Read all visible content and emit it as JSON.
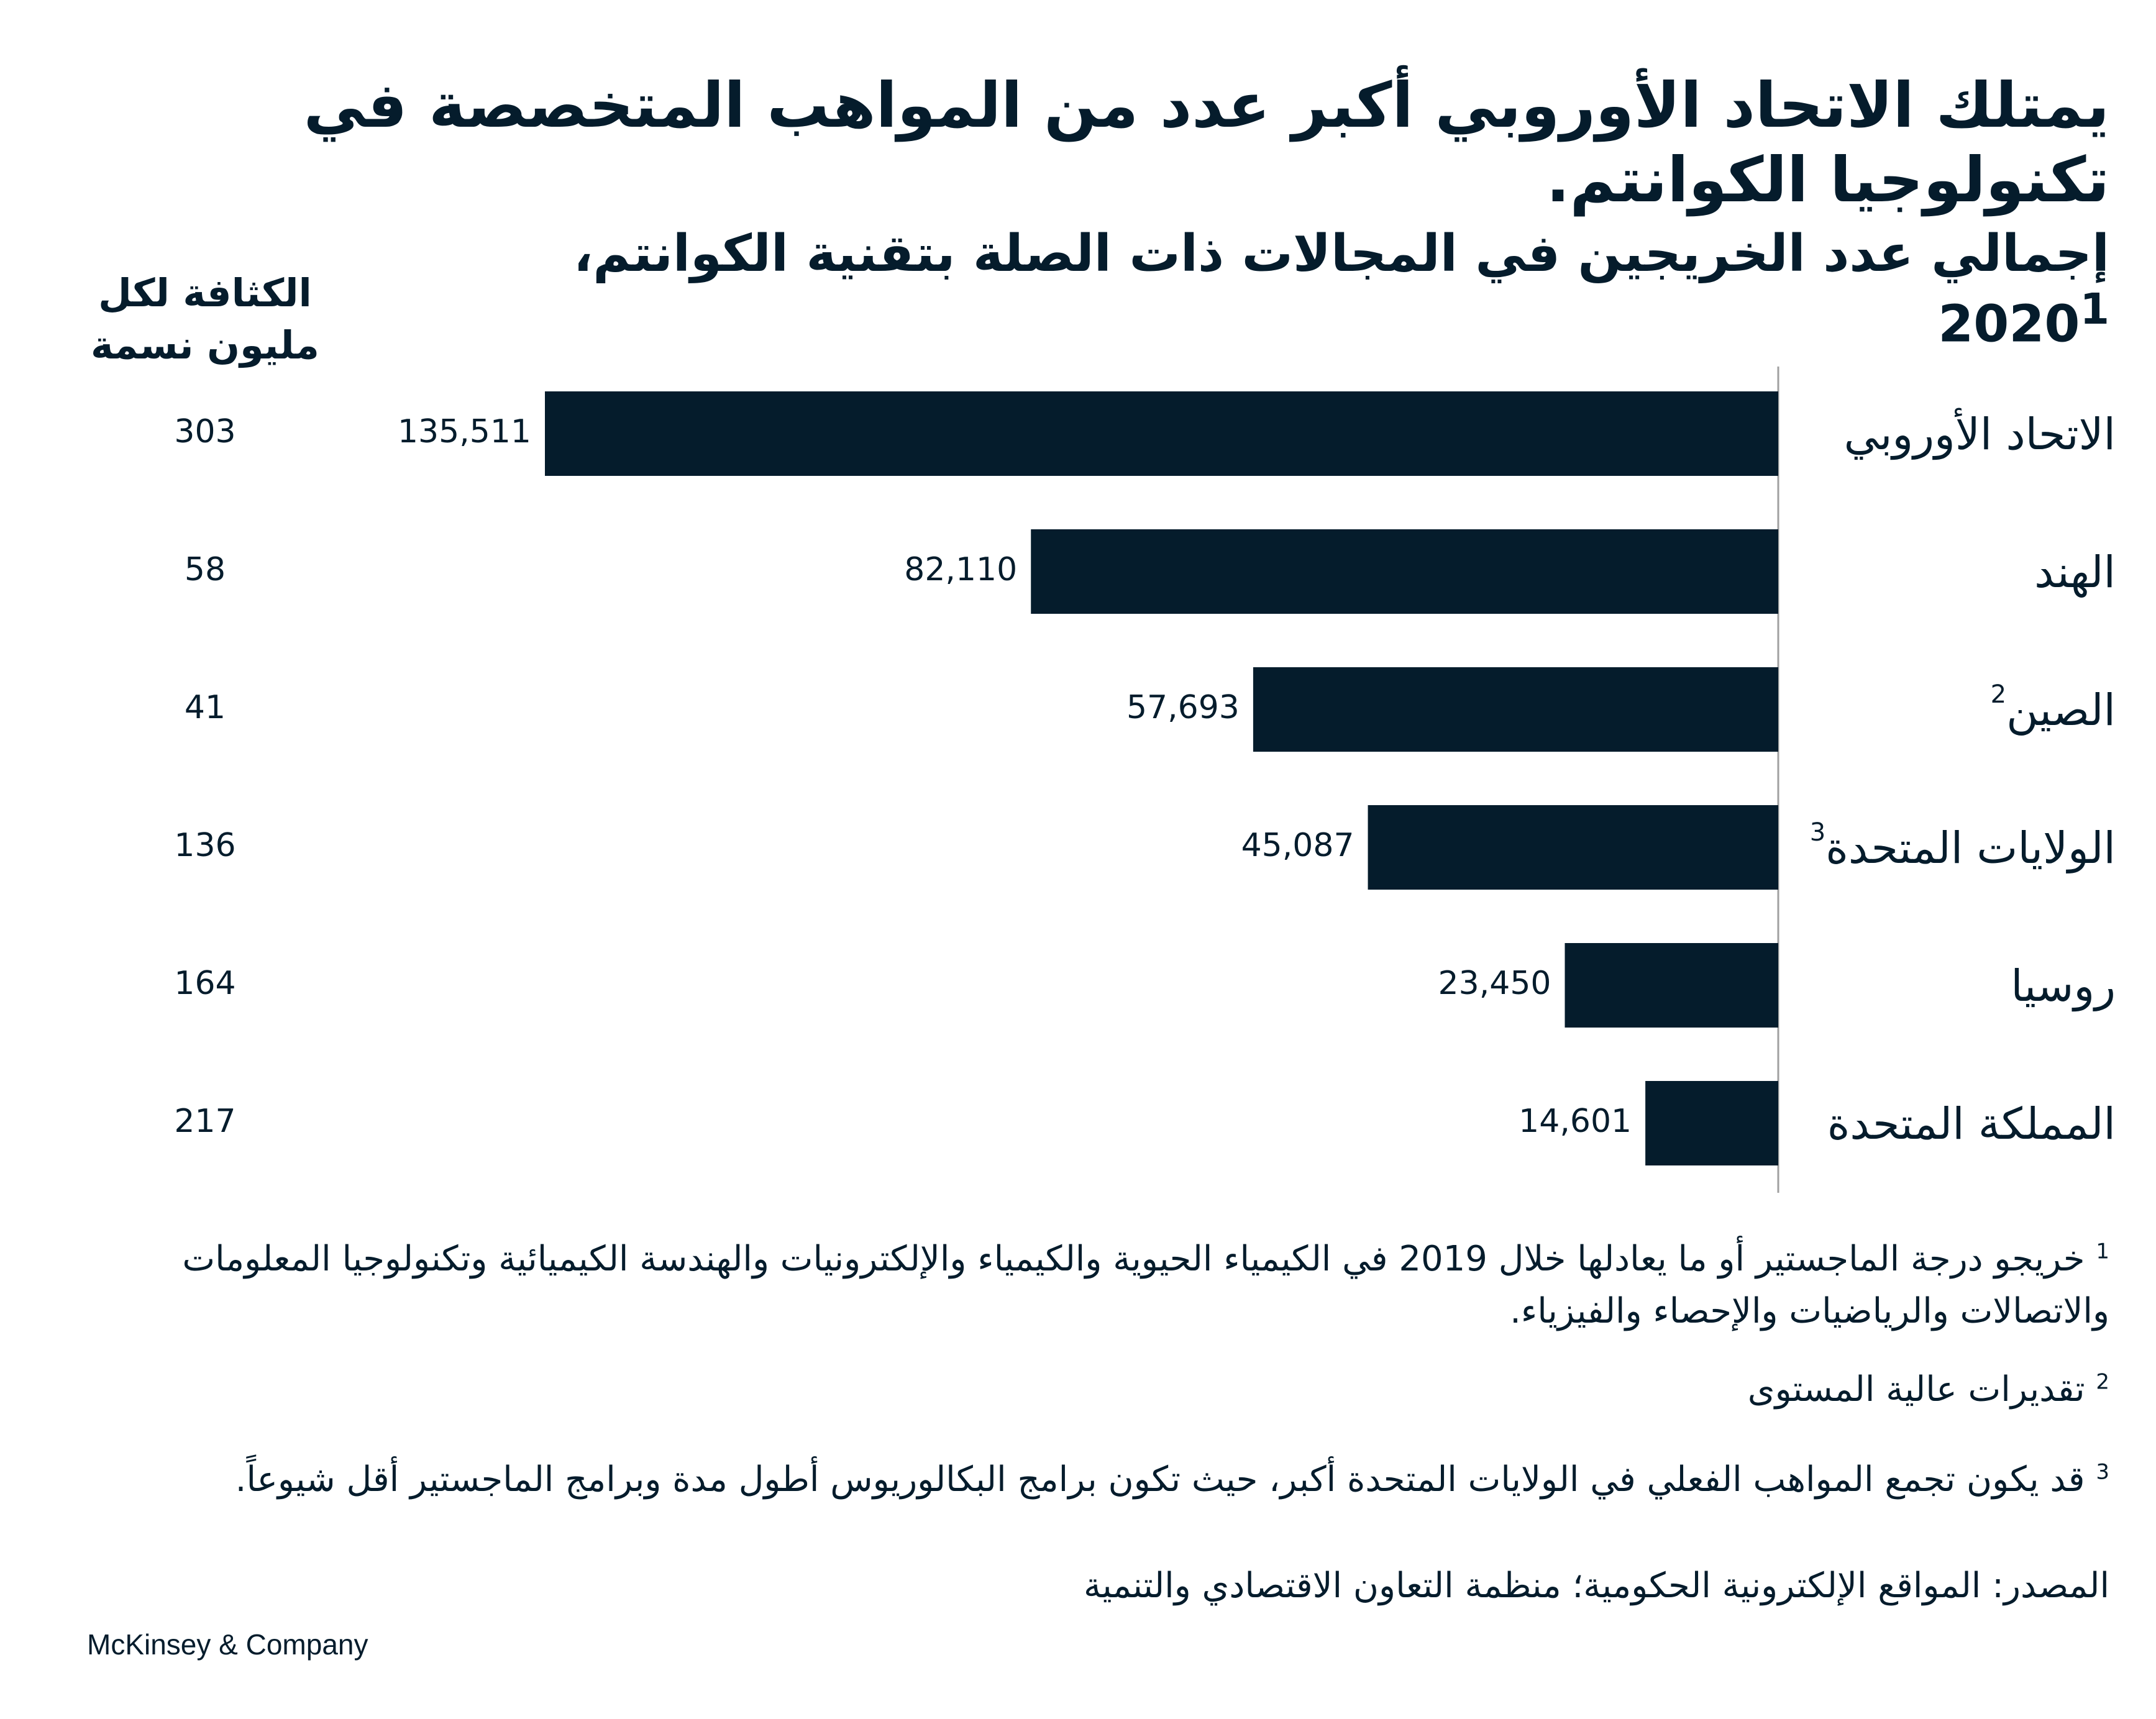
{
  "chart_data": {
    "type": "bar",
    "orientation": "horizontal",
    "title": "يمتلك الاتحاد الأوروبي أكبر عدد من المواهب المتخصصة في تكنولوجيا الكوانتم.",
    "subtitle": "إجمالي عدد الخريجين في المجالات ذات الصلة بتقنية الكوانتم، 2020",
    "subtitle_sup": "1",
    "categories": [
      "الاتحاد الأوروبي",
      "الهند",
      "الصين",
      "الولايات المتحدة",
      "روسيا",
      "المملكة المتحدة"
    ],
    "category_sups": [
      "",
      "",
      "2",
      "3",
      "",
      ""
    ],
    "values": [
      135511,
      82110,
      57693,
      45087,
      23450,
      14601
    ],
    "value_labels": [
      "135,511",
      "82,110",
      "57,693",
      "45,087",
      "23,450",
      "14,601"
    ],
    "density_header": "الكثافة لكل مليون نسمة",
    "density": [
      "303",
      "58",
      "41",
      "136",
      "164",
      "217"
    ],
    "bar_color": "#051c2c",
    "xlim": [
      0,
      135511
    ]
  },
  "footnotes": {
    "fn1_mark": "1",
    "fn1": "خريجو درجة الماجستير أو ما يعادلها خلال 2019 في الكيمياء الحيوية والكيمياء والإلكترونيات والهندسة الكيميائية وتكنولوجيا المعلومات والاتصالات والرياضيات والإحصاء والفيزياء.",
    "fn2_mark": "2",
    "fn2": "تقديرات عالية المستوى",
    "fn3_mark": "3",
    "fn3": "قد يكون تجمع المواهب الفعلي في الولايات المتحدة أكبر، حيث تكون برامج البكالوريوس أطول مدة وبرامج الماجستير أقل شيوعاً."
  },
  "source": "المصدر: المواقع الإلكترونية الحكومية؛ منظمة التعاون الاقتصادي والتنمية",
  "brand": "McKinsey & Company"
}
